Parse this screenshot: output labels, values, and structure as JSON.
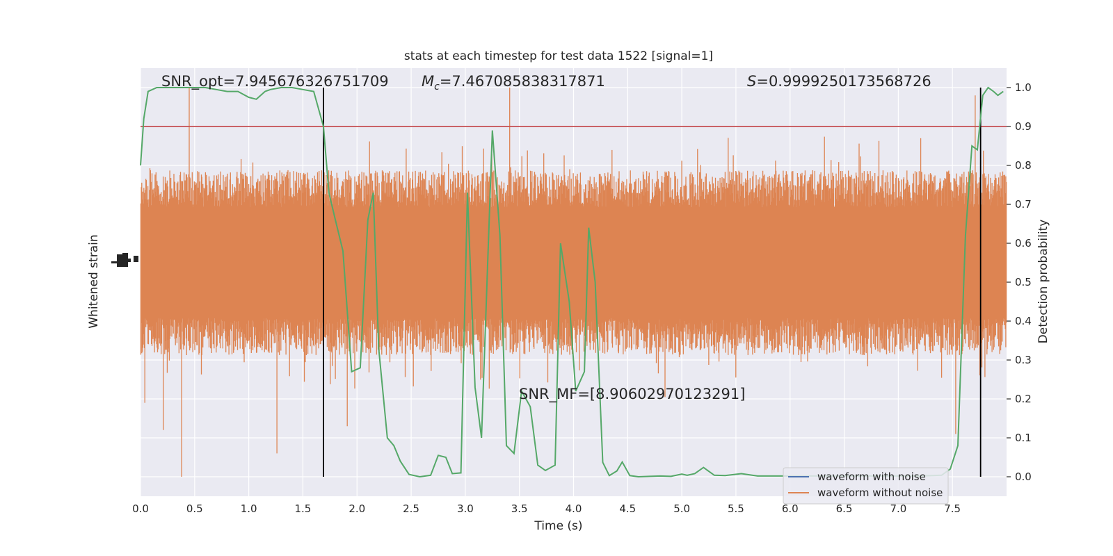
{
  "chart_data": {
    "type": "line",
    "title": "stats at each timestep for test data 1522 [signal=1]",
    "xlabel": "Time (s)",
    "ylabel_left": "Whitened strain",
    "ylabel_right": "Detection probability",
    "xlim": [
      0.0,
      8.0
    ],
    "ylim_right": [
      -0.05,
      1.05
    ],
    "x_ticks": [
      "0.0",
      "0.5",
      "1.0",
      "1.5",
      "2.0",
      "2.5",
      "3.0",
      "3.5",
      "4.0",
      "4.5",
      "5.0",
      "5.5",
      "6.0",
      "6.5",
      "7.0",
      "7.5"
    ],
    "y_ticks_right": [
      "0.0",
      "0.1",
      "0.2",
      "0.3",
      "0.4",
      "0.5",
      "0.6",
      "0.7",
      "0.8",
      "0.9",
      "1.0"
    ],
    "grid": true,
    "legend_position": "lower-right",
    "legend": [
      {
        "label": "waveform with noise",
        "color": "#4c72b0"
      },
      {
        "label": "waveform without noise",
        "color": "#dd8452"
      }
    ],
    "annotations": {
      "snr_opt": "SNR_opt=7.945676326751709",
      "mc_symbol": "M",
      "mc_sub": "c",
      "mc_value": "=7.467085838317871",
      "s_symbol": "S",
      "s_value": "=0.9999250173568726",
      "snr_mf": "SNR_MF=[8.90602970123291]"
    },
    "threshold": {
      "value": 0.9,
      "color": "#c44e52"
    },
    "vlines": [
      1.69,
      7.76
    ],
    "strain_band": {
      "center": 0.55,
      "half_range": 0.19,
      "color": "#dd8452"
    },
    "strain_spikes": [
      {
        "t": 0.38,
        "v": 0.0
      },
      {
        "t": 1.26,
        "v": 0.06
      },
      {
        "t": 1.91,
        "v": 0.13
      },
      {
        "t": 0.45,
        "v": 1.0
      },
      {
        "t": 3.41,
        "v": 1.0
      },
      {
        "t": 7.71,
        "v": 0.98
      },
      {
        "t": 7.53,
        "v": 0.11
      },
      {
        "t": 0.04,
        "v": 0.19
      },
      {
        "t": 0.21,
        "v": 0.12
      }
    ],
    "detection_probability": {
      "color": "#55a868",
      "x": [
        0.0,
        0.03,
        0.07,
        0.15,
        0.25,
        0.35,
        0.5,
        0.6,
        0.7,
        0.8,
        0.9,
        1.0,
        1.07,
        1.15,
        1.2,
        1.3,
        1.4,
        1.5,
        1.6,
        1.64,
        1.69,
        1.74,
        1.8,
        1.87,
        1.95,
        2.03,
        2.1,
        2.15,
        2.2,
        2.28,
        2.34,
        2.4,
        2.48,
        2.58,
        2.68,
        2.75,
        2.82,
        2.88,
        2.96,
        3.02,
        3.09,
        3.15,
        3.25,
        3.32,
        3.38,
        3.45,
        3.52,
        3.6,
        3.67,
        3.74,
        3.83,
        3.88,
        3.96,
        4.02,
        4.1,
        4.14,
        4.2,
        4.27,
        4.33,
        4.4,
        4.45,
        4.52,
        4.6,
        4.7,
        4.8,
        4.9,
        5.0,
        5.05,
        5.12,
        5.2,
        5.3,
        5.4,
        5.55,
        5.7,
        5.9,
        6.0,
        6.3,
        6.6,
        6.9,
        7.2,
        7.4,
        7.48,
        7.55,
        7.62,
        7.68,
        7.73,
        7.78,
        7.83,
        7.88,
        7.92,
        7.97
      ],
      "y": [
        0.8,
        0.92,
        0.99,
        1.0,
        1.0,
        1.0,
        1.0,
        1.0,
        0.995,
        0.99,
        0.99,
        0.975,
        0.97,
        0.99,
        0.995,
        1.0,
        1.0,
        0.995,
        0.99,
        0.95,
        0.9,
        0.73,
        0.66,
        0.58,
        0.27,
        0.28,
        0.66,
        0.73,
        0.33,
        0.1,
        0.08,
        0.04,
        0.006,
        0.0,
        0.004,
        0.055,
        0.05,
        0.008,
        0.01,
        0.73,
        0.23,
        0.1,
        0.89,
        0.62,
        0.08,
        0.06,
        0.22,
        0.18,
        0.03,
        0.016,
        0.03,
        0.6,
        0.45,
        0.22,
        0.27,
        0.64,
        0.5,
        0.037,
        0.003,
        0.015,
        0.038,
        0.003,
        0.0,
        0.001,
        0.002,
        0.001,
        0.007,
        0.004,
        0.008,
        0.024,
        0.004,
        0.003,
        0.008,
        0.002,
        0.002,
        0.002,
        0.002,
        0.002,
        0.002,
        0.002,
        0.004,
        0.02,
        0.08,
        0.62,
        0.85,
        0.84,
        0.98,
        1.0,
        0.99,
        0.98,
        0.99
      ]
    }
  }
}
